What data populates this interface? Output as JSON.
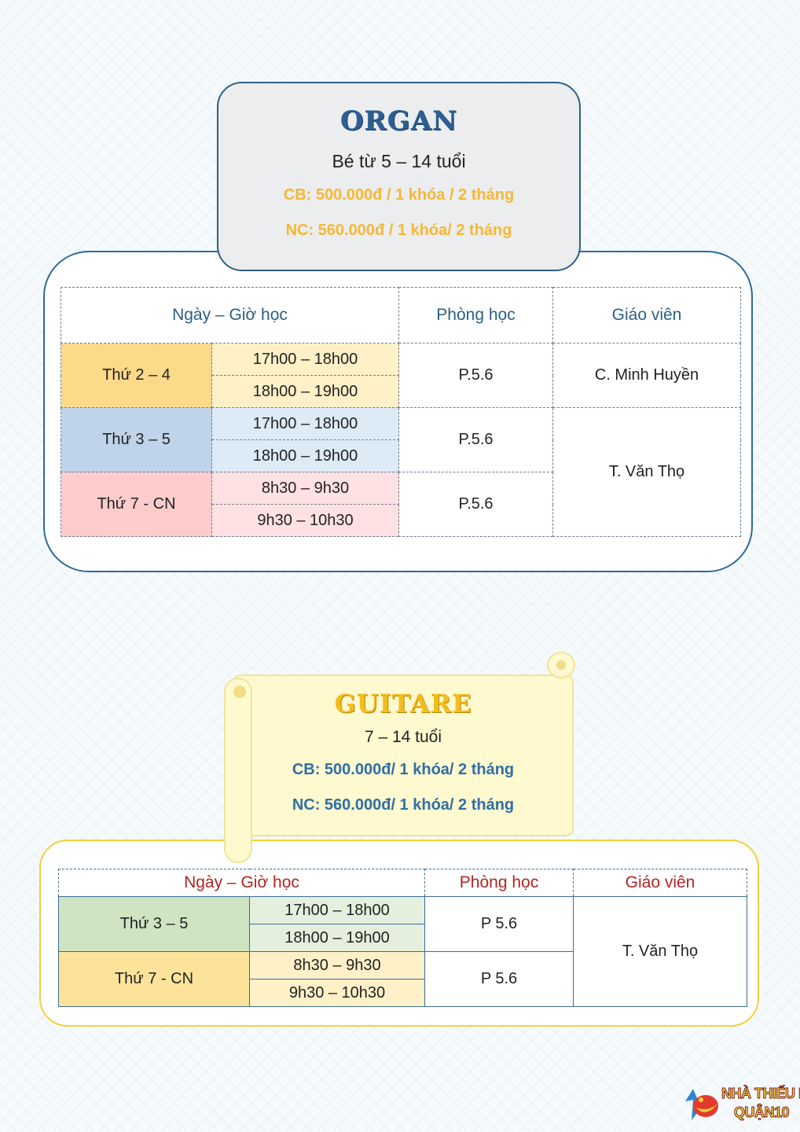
{
  "organ": {
    "title": "ORGAN",
    "age": "Bé từ 5 – 14 tuổi",
    "price_basic": "CB: 500.000đ / 1 khóa / 2 tháng",
    "price_advanced": "NC: 560.000đ / 1 khóa/ 2 tháng",
    "header": {
      "schedule": "Ngày – Giờ học",
      "room": "Phòng học",
      "teacher": "Giáo viên"
    },
    "colors": {
      "row1_day": "#fdd98a",
      "row1_time": "#fff0c8",
      "row2_day": "#bfd3ea",
      "row2_time": "#dcebf5",
      "row3_day": "#ffcccc",
      "row3_time": "#ffe0e3"
    },
    "groups": [
      {
        "day": "Thứ 2 – 4",
        "times": [
          "17h00 – 18h00",
          "18h00 – 19h00"
        ],
        "room": "P.5.6",
        "teacher": "C. Minh Huyền"
      },
      {
        "day": "Thứ 3 – 5",
        "times": [
          "17h00 – 18h00",
          "18h00 – 19h00"
        ],
        "room": "P.5.6"
      },
      {
        "day": "Thứ 7 - CN",
        "times": [
          "8h30 – 9h30",
          "9h30 – 10h30"
        ],
        "room": "P.5.6"
      }
    ],
    "shared_teacher": "T. Văn Thọ"
  },
  "guitar": {
    "title": "GUITARE",
    "age": "7 – 14 tuổi",
    "price_basic": "CB: 500.000đ/ 1 khóa/ 2 tháng",
    "price_advanced": "NC: 560.000đ/ 1 khóa/ 2 tháng",
    "header": {
      "schedule": "Ngày – Giờ học",
      "room": "Phòng học",
      "teacher": "Giáo viên"
    },
    "colors": {
      "row1_day": "#cfe4c3",
      "row1_time": "#e4f0dd",
      "row2_day": "#fde39a",
      "row2_time": "#fff0c8"
    },
    "groups": [
      {
        "day": "Thứ 3 – 5",
        "times": [
          "17h00 – 18h00",
          "18h00 – 19h00"
        ],
        "room": "P 5.6"
      },
      {
        "day": "Thứ 7 - CN",
        "times": [
          "8h30 – 9h30",
          "9h30 – 10h30"
        ],
        "room": "P 5.6"
      }
    ],
    "teacher": "T. Văn Thọ"
  },
  "logo": {
    "line1": "NHÀ THIẾU NHI",
    "line2": "QUẬN10",
    "icon": "nha-thieu-nhi-logo-icon"
  }
}
